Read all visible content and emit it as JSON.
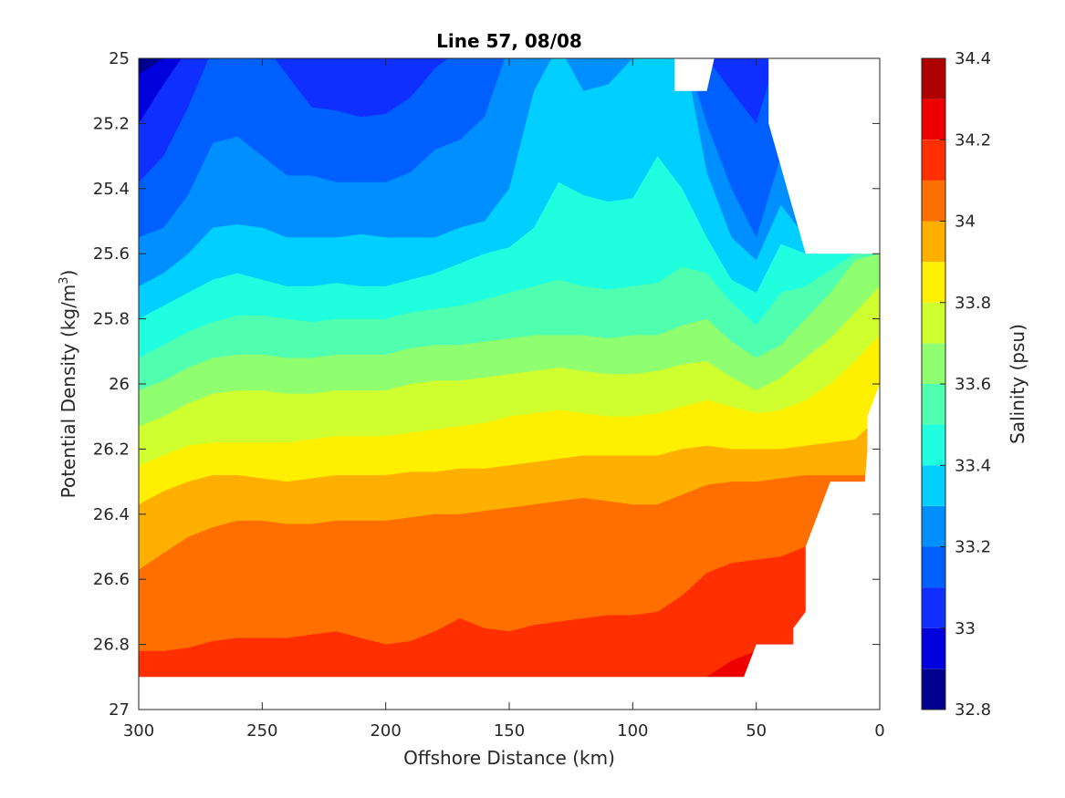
{
  "chart_data": {
    "type": "heatmap",
    "subtype": "filled-contour",
    "title": "Line 57, 08/08",
    "xlabel": "Offshore Distance (km)",
    "ylabel_main": "Potential Density (kg/m",
    "ylabel_sup": "3",
    "ylabel_close": ")",
    "xlim": [
      300,
      0
    ],
    "ylim": [
      25,
      27
    ],
    "y_reversed": true,
    "x_ticks": [
      "300",
      "250",
      "200",
      "150",
      "100",
      "50",
      "0"
    ],
    "x_tick_values": [
      300,
      250,
      200,
      150,
      100,
      50,
      0
    ],
    "y_ticks": [
      "25",
      "25.2",
      "25.4",
      "25.6",
      "25.8",
      "26",
      "26.2",
      "26.4",
      "26.6",
      "26.8",
      "27"
    ],
    "y_tick_values": [
      25,
      25.2,
      25.4,
      25.6,
      25.8,
      26,
      26.2,
      26.4,
      26.6,
      26.8,
      27
    ],
    "colorbar": {
      "label": "Salinity (psu)",
      "range": [
        32.8,
        34.4
      ],
      "step": 0.1,
      "tick_labels": [
        "32.8",
        "33",
        "33.2",
        "33.4",
        "33.6",
        "33.8",
        "34",
        "34.2",
        "34.4"
      ],
      "tick_values": [
        32.8,
        33.0,
        33.2,
        33.4,
        33.6,
        33.8,
        34.0,
        34.2,
        34.4
      ],
      "colors": [
        "#00008f",
        "#0000df",
        "#0f2fff",
        "#005fff",
        "#008fff",
        "#00cfff",
        "#1fffdf",
        "#4fffaf",
        "#8fff6f",
        "#cfff2f",
        "#ffef00",
        "#ffaf00",
        "#ff6f00",
        "#ff2f00",
        "#ef0000",
        "#af0000"
      ]
    },
    "x_grid": [
      300,
      290,
      280,
      270,
      260,
      250,
      240,
      230,
      220,
      210,
      200,
      190,
      180,
      170,
      160,
      150,
      140,
      130,
      120,
      110,
      100,
      90,
      80,
      70,
      60,
      50,
      40,
      30,
      20,
      10,
      0
    ],
    "salinity_isolines": [
      {
        "level": 32.9,
        "density": [
          25.05,
          25.0,
          24.95,
          24.95,
          24.95,
          24.95,
          24.95,
          24.95,
          24.95,
          24.95,
          24.95,
          24.95,
          24.95,
          24.95,
          24.95,
          24.95,
          24.95,
          24.95,
          24.95,
          24.95,
          24.95,
          24.95,
          24.95,
          24.95,
          24.95,
          24.95,
          24.95,
          24.95,
          24.95,
          24.95,
          24.95
        ]
      },
      {
        "level": 33.0,
        "density": [
          25.2,
          25.08,
          24.97,
          24.95,
          24.95,
          24.95,
          24.95,
          24.95,
          24.95,
          24.95,
          24.95,
          24.95,
          24.95,
          24.95,
          24.95,
          24.95,
          24.95,
          24.95,
          24.95,
          24.95,
          24.95,
          24.95,
          24.95,
          24.95,
          24.95,
          24.95,
          24.95,
          24.95,
          24.95,
          24.95,
          24.95
        ]
      },
      {
        "level": 33.1,
        "density": [
          25.38,
          25.3,
          25.15,
          24.97,
          24.95,
          24.95,
          25.05,
          25.15,
          25.16,
          25.18,
          25.17,
          25.12,
          25.03,
          24.97,
          24.95,
          24.95,
          24.95,
          24.95,
          24.95,
          24.95,
          24.95,
          24.95,
          24.95,
          25.0,
          25.1,
          25.2,
          24.95,
          24.95,
          24.95,
          24.95,
          24.95
        ]
      },
      {
        "level": 33.2,
        "density": [
          25.55,
          25.52,
          25.42,
          25.26,
          25.24,
          25.3,
          25.36,
          25.36,
          25.38,
          25.38,
          25.38,
          25.35,
          25.28,
          25.25,
          25.18,
          24.96,
          24.95,
          24.95,
          24.95,
          24.95,
          24.95,
          24.95,
          24.95,
          25.2,
          25.4,
          25.55,
          25.3,
          25.35,
          24.95,
          24.95,
          24.95
        ]
      },
      {
        "level": 33.3,
        "density": [
          25.7,
          25.66,
          25.6,
          25.52,
          25.51,
          25.52,
          25.55,
          25.55,
          25.55,
          25.54,
          25.55,
          25.55,
          25.55,
          25.52,
          25.5,
          25.4,
          25.1,
          24.96,
          25.1,
          25.08,
          25.0,
          24.95,
          24.95,
          25.35,
          25.55,
          25.62,
          25.45,
          25.55,
          25.55,
          25.55,
          25.55
        ]
      },
      {
        "level": 33.4,
        "density": [
          25.8,
          25.76,
          25.72,
          25.68,
          25.66,
          25.68,
          25.7,
          25.7,
          25.69,
          25.7,
          25.7,
          25.68,
          25.66,
          25.63,
          25.6,
          25.58,
          25.52,
          25.38,
          25.42,
          25.44,
          25.43,
          25.3,
          25.4,
          25.55,
          25.68,
          25.72,
          25.57,
          25.6,
          25.6,
          25.6,
          25.6
        ]
      },
      {
        "level": 33.5,
        "density": [
          25.92,
          25.88,
          25.84,
          25.81,
          25.79,
          25.79,
          25.8,
          25.81,
          25.8,
          25.8,
          25.8,
          25.78,
          25.77,
          25.76,
          25.74,
          25.72,
          25.7,
          25.68,
          25.7,
          25.71,
          25.7,
          25.69,
          25.64,
          25.66,
          25.75,
          25.82,
          25.72,
          25.7,
          25.65,
          25.6,
          25.6
        ]
      },
      {
        "level": 33.6,
        "density": [
          26.02,
          25.99,
          25.95,
          25.92,
          25.91,
          25.91,
          25.92,
          25.92,
          25.91,
          25.91,
          25.91,
          25.89,
          25.88,
          25.88,
          25.87,
          25.86,
          25.85,
          25.85,
          25.85,
          25.86,
          25.85,
          25.85,
          25.82,
          25.8,
          25.87,
          25.92,
          25.88,
          25.8,
          25.72,
          25.62,
          25.6
        ]
      },
      {
        "level": 33.7,
        "density": [
          26.13,
          26.1,
          26.06,
          26.03,
          26.02,
          26.02,
          26.03,
          26.03,
          26.02,
          26.02,
          26.02,
          26.0,
          25.99,
          25.99,
          25.98,
          25.97,
          25.96,
          25.95,
          25.96,
          25.97,
          25.97,
          25.96,
          25.94,
          25.93,
          25.98,
          26.02,
          25.98,
          25.92,
          25.86,
          25.78,
          25.7
        ]
      },
      {
        "level": 33.8,
        "density": [
          26.25,
          26.22,
          26.19,
          26.18,
          26.18,
          26.18,
          26.18,
          26.17,
          26.16,
          26.16,
          26.16,
          26.15,
          26.14,
          26.13,
          26.12,
          26.1,
          26.09,
          26.08,
          26.09,
          26.1,
          26.1,
          26.09,
          26.07,
          26.05,
          26.07,
          26.09,
          26.08,
          26.05,
          26.0,
          25.93,
          25.85
        ]
      },
      {
        "level": 33.9,
        "density": [
          26.37,
          26.33,
          26.3,
          26.28,
          26.28,
          26.29,
          26.3,
          26.29,
          26.28,
          26.28,
          26.28,
          26.27,
          26.27,
          26.26,
          26.26,
          26.25,
          26.24,
          26.23,
          26.22,
          26.22,
          26.22,
          26.22,
          26.2,
          26.19,
          26.2,
          26.2,
          26.2,
          26.19,
          26.18,
          26.17,
          26.1
        ]
      },
      {
        "level": 34.0,
        "density": [
          26.57,
          26.52,
          26.47,
          26.44,
          26.42,
          26.42,
          26.43,
          26.43,
          26.42,
          26.42,
          26.42,
          26.41,
          26.4,
          26.4,
          26.39,
          26.38,
          26.37,
          26.36,
          26.35,
          26.36,
          26.37,
          26.37,
          26.34,
          26.31,
          26.3,
          26.3,
          26.29,
          26.28,
          26.28,
          26.28,
          26.28
        ]
      },
      {
        "level": 34.1,
        "density": [
          26.82,
          26.82,
          26.81,
          26.79,
          26.78,
          26.78,
          26.78,
          26.77,
          26.76,
          26.78,
          26.8,
          26.79,
          26.76,
          26.72,
          26.75,
          26.76,
          26.74,
          26.73,
          26.72,
          26.71,
          26.71,
          26.7,
          26.65,
          26.58,
          26.55,
          26.54,
          26.53,
          26.5,
          26.5,
          26.5,
          26.5
        ]
      },
      {
        "level": 34.2,
        "density": [
          27.05,
          27.05,
          27.05,
          27.05,
          27.05,
          27.05,
          27.05,
          27.05,
          27.05,
          27.05,
          27.05,
          27.05,
          27.05,
          27.05,
          27.05,
          27.05,
          27.05,
          27.05,
          27.05,
          27.05,
          27.05,
          27.05,
          27.05,
          26.9,
          26.85,
          26.82,
          27.05,
          27.05,
          27.05,
          27.05,
          27.05
        ]
      }
    ],
    "data_coverage": {
      "note_top_gap": [
        [
          83,
          25.0
        ],
        [
          83,
          25.1
        ],
        [
          70,
          25.1
        ],
        [
          67,
          25.0
        ]
      ],
      "right_edge": [
        [
          45,
          25.0
        ],
        [
          45,
          25.2
        ],
        [
          30,
          25.6
        ],
        [
          24,
          25.6
        ],
        [
          20,
          25.6
        ],
        [
          10,
          25.6
        ],
        [
          0,
          25.6
        ],
        [
          0,
          26.0
        ],
        [
          5,
          26.1
        ],
        [
          5,
          26.2
        ],
        [
          6,
          26.3
        ],
        [
          20,
          26.3
        ],
        [
          30,
          26.5
        ],
        [
          30,
          26.7
        ],
        [
          35,
          26.75
        ],
        [
          35,
          26.8
        ],
        [
          50,
          26.8
        ],
        [
          55,
          26.9
        ]
      ],
      "bottom": 26.9
    }
  }
}
